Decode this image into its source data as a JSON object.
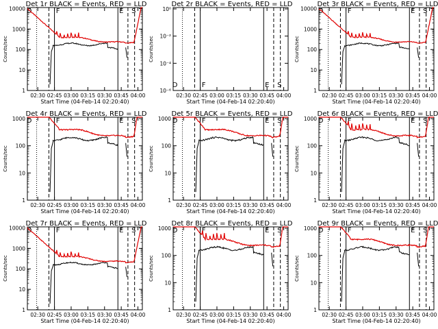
{
  "chart_data": [
    {
      "type": "line",
      "title": "Det 1r BLACK = Events, RED = LLD",
      "xlabel": "Start Time (04-Feb-14 02:20:40)",
      "ylabel": "Counts/sec",
      "yscale": "log",
      "ytick_labels": [
        "1",
        "10",
        "100",
        "1000",
        "10000"
      ],
      "xtick_labels": [
        "02:30",
        "02:45",
        "03:00",
        "03:15",
        "03:30",
        "03:45",
        "04:00"
      ],
      "markers": [
        "D",
        "F",
        "E",
        "S"
      ],
      "has_data": true,
      "peaks": true,
      "series": [
        {
          "name": "Events",
          "color": "#000000"
        },
        {
          "name": "LLD",
          "color": "#e00000"
        }
      ]
    },
    {
      "type": "line",
      "title": "Det 2r BLACK = Events, RED = LLD",
      "xlabel": "Start Time (04-Feb-14 02:20:40)",
      "ylabel": "Counts/sec",
      "yscale": "log",
      "ytick_labels": [
        "10⁰",
        "10⁻²",
        "10⁻⁴",
        "10⁻⁶"
      ],
      "xtick_labels": [
        "02:30",
        "02:45",
        "03:00",
        "03:15",
        "03:30",
        "03:45",
        "04:00"
      ],
      "markers": [
        "D",
        "F",
        "E",
        "S"
      ],
      "has_data": false,
      "peaks": false,
      "series": []
    },
    {
      "type": "line",
      "title": "Det 3r BLACK = Events, RED = LLD",
      "xlabel": "Start Time (04-Feb-14 02:20:40)",
      "ylabel": "Counts/sec",
      "yscale": "log",
      "ytick_labels": [
        "1",
        "10",
        "100",
        "1000",
        "10000"
      ],
      "xtick_labels": [
        "02:30",
        "02:45",
        "03:00",
        "03:15",
        "03:30",
        "03:45",
        "04:00"
      ],
      "markers": [
        "D",
        "F",
        "E",
        "S"
      ],
      "has_data": true,
      "peaks": true,
      "series": [
        {
          "name": "Events",
          "color": "#000000"
        },
        {
          "name": "LLD",
          "color": "#e00000"
        }
      ]
    },
    {
      "type": "line",
      "title": "Det 4r BLACK = Events, RED = LLD",
      "xlabel": "Start Time (04-Feb-14 02:20:40)",
      "ylabel": "Counts/sec",
      "yscale": "log",
      "ytick_labels": [
        "1",
        "10",
        "100",
        "1000"
      ],
      "xtick_labels": [
        "02:30",
        "02:45",
        "03:00",
        "03:15",
        "03:30",
        "03:45",
        "04:00"
      ],
      "markers": [
        "D",
        "F",
        "E",
        "S"
      ],
      "has_data": true,
      "peaks": false,
      "series": [
        {
          "name": "Events",
          "color": "#000000"
        },
        {
          "name": "LLD",
          "color": "#e00000"
        }
      ]
    },
    {
      "type": "line",
      "title": "Det 5r BLACK = Events, RED = LLD",
      "xlabel": "Start Time (04-Feb-14 02:20:40)",
      "ylabel": "Counts/sec",
      "yscale": "log",
      "ytick_labels": [
        "1",
        "10",
        "100",
        "1000"
      ],
      "xtick_labels": [
        "02:30",
        "02:45",
        "03:00",
        "03:15",
        "03:30",
        "03:45",
        "04:00"
      ],
      "markers": [
        "D",
        "F",
        "E",
        "S"
      ],
      "has_data": true,
      "peaks": false,
      "series": [
        {
          "name": "Events",
          "color": "#000000"
        },
        {
          "name": "LLD",
          "color": "#e00000"
        }
      ]
    },
    {
      "type": "line",
      "title": "Det 6r BLACK = Events, RED = LLD",
      "xlabel": "Start Time (04-Feb-14 02:20:40)",
      "ylabel": "Counts/sec",
      "yscale": "log",
      "ytick_labels": [
        "1",
        "10",
        "100",
        "1000"
      ],
      "xtick_labels": [
        "02:30",
        "02:45",
        "03:00",
        "03:15",
        "03:30",
        "03:45",
        "04:00"
      ],
      "markers": [
        "D",
        "F",
        "E",
        "S"
      ],
      "has_data": true,
      "peaks": true,
      "series": [
        {
          "name": "Events",
          "color": "#000000"
        },
        {
          "name": "LLD",
          "color": "#e00000"
        }
      ]
    },
    {
      "type": "line",
      "title": "Det 7r BLACK = Events, RED = LLD",
      "xlabel": "Start Time (04-Feb-14 02:20:40)",
      "ylabel": "Counts/sec",
      "yscale": "log",
      "ytick_labels": [
        "1",
        "10",
        "100",
        "1000",
        "10000"
      ],
      "xtick_labels": [
        "02:30",
        "02:45",
        "03:00",
        "03:15",
        "03:30",
        "03:45",
        "04:00"
      ],
      "markers": [
        "D",
        "F",
        "E",
        "S"
      ],
      "has_data": true,
      "peaks": true,
      "series": [
        {
          "name": "Events",
          "color": "#000000"
        },
        {
          "name": "LLD",
          "color": "#e00000"
        }
      ]
    },
    {
      "type": "line",
      "title": "Det 8r BLACK = Events, RED = LLD",
      "xlabel": "Start Time (04-Feb-14 02:20:40)",
      "ylabel": "Counts/sec",
      "yscale": "log",
      "ytick_labels": [
        "1",
        "10",
        "100",
        "1000"
      ],
      "xtick_labels": [
        "02:30",
        "02:45",
        "03:00",
        "03:15",
        "03:30",
        "03:45",
        "04:00"
      ],
      "markers": [
        "D",
        "F",
        "E",
        "S"
      ],
      "has_data": true,
      "peaks": true,
      "series": [
        {
          "name": "Events",
          "color": "#000000"
        },
        {
          "name": "LLD",
          "color": "#e00000"
        }
      ]
    },
    {
      "type": "line",
      "title": "Det 9r BLACK = Events, RED = LLD",
      "xlabel": "Start Time (04-Feb-14 02:20:40)",
      "ylabel": "Counts/sec",
      "yscale": "log",
      "ytick_labels": [
        "1",
        "10",
        "100",
        "1000"
      ],
      "xtick_labels": [
        "02:30",
        "02:45",
        "03:00",
        "03:15",
        "03:30",
        "03:45",
        "04:00"
      ],
      "markers": [
        "D",
        "F",
        "E",
        "S"
      ],
      "has_data": true,
      "peaks": false,
      "series": [
        {
          "name": "Events",
          "color": "#000000"
        },
        {
          "name": "LLD",
          "color": "#e00000"
        }
      ]
    }
  ]
}
